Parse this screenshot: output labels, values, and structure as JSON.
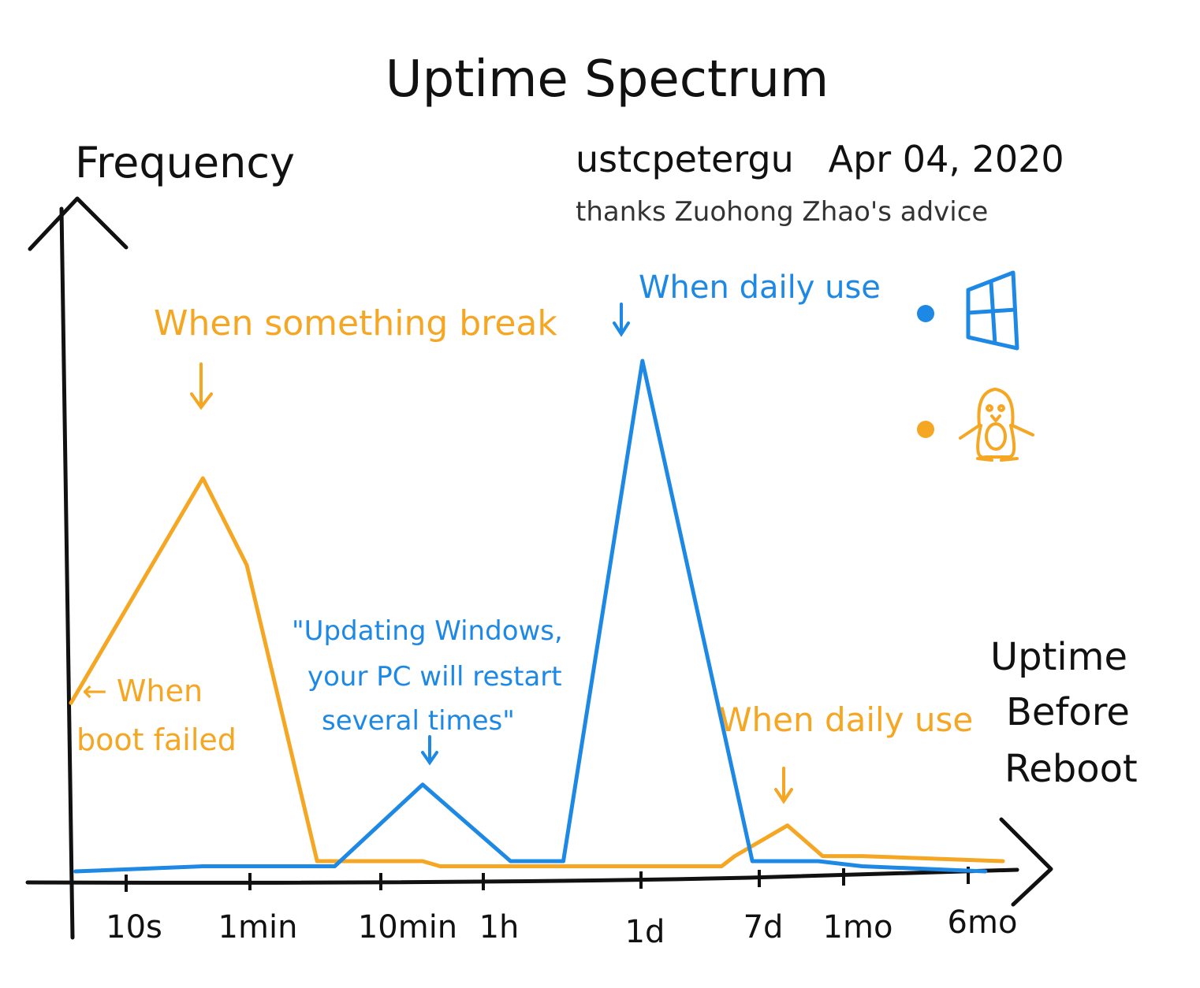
{
  "chart_data": {
    "type": "line",
    "title": "Uptime Spectrum",
    "author_line": "ustcpetergu   Apr 04, 2020",
    "credit_line": "thanks Zuohong Zhao's advice",
    "ylabel": "Frequency",
    "xlabel_lines": [
      "Uptime",
      "Before",
      "Reboot"
    ],
    "x_ticks": [
      "10s",
      "1min",
      "10min",
      "1h",
      "1d",
      "7d",
      "1mo",
      "6mo"
    ],
    "colors": {
      "windows": "#1e88e5",
      "linux": "#f5a623",
      "axis": "#111111"
    },
    "legend": [
      {
        "icon": "windows-logo-icon",
        "color": "#1e88e5"
      },
      {
        "icon": "linux-penguin-icon",
        "color": "#f5a623"
      }
    ],
    "series": [
      {
        "key": "linux",
        "color": "#f5a623",
        "points": [
          {
            "x": 0.0,
            "y": 0.33
          },
          {
            "x": 1.5,
            "y": 0.77
          },
          {
            "x": 2.0,
            "y": 0.6
          },
          {
            "x": 2.8,
            "y": 0.02
          },
          {
            "x": 4.0,
            "y": 0.02
          },
          {
            "x": 4.2,
            "y": 0.01
          },
          {
            "x": 6.0,
            "y": 0.01
          },
          {
            "x": 7.4,
            "y": 0.01
          },
          {
            "x": 7.55,
            "y": 0.03
          },
          {
            "x": 8.15,
            "y": 0.09
          },
          {
            "x": 8.55,
            "y": 0.03
          },
          {
            "x": 9.0,
            "y": 0.03
          },
          {
            "x": 10.6,
            "y": 0.02
          }
        ]
      },
      {
        "key": "windows",
        "color": "#1e88e5",
        "points": [
          {
            "x": 0.05,
            "y": 0.0
          },
          {
            "x": 1.5,
            "y": 0.01
          },
          {
            "x": 3.0,
            "y": 0.01
          },
          {
            "x": 4.0,
            "y": 0.17
          },
          {
            "x": 5.0,
            "y": 0.02
          },
          {
            "x": 5.6,
            "y": 0.02
          },
          {
            "x": 6.5,
            "y": 1.0
          },
          {
            "x": 7.75,
            "y": 0.02
          },
          {
            "x": 8.5,
            "y": 0.02
          },
          {
            "x": 9.0,
            "y": 0.01
          },
          {
            "x": 10.4,
            "y": 0.0
          }
        ]
      }
    ],
    "annotations": [
      {
        "text": [
          "When something break"
        ],
        "color": "#f5a623"
      },
      {
        "text": [
          "When daily use"
        ],
        "color": "#1e88e5"
      },
      {
        "text": [
          "\"Updating Windows,",
          "your PC will restart",
          "several times\""
        ],
        "color": "#1e88e5"
      },
      {
        "text": [
          "← When",
          "boot failed"
        ],
        "color": "#f5a623"
      },
      {
        "text": [
          "When daily use"
        ],
        "color": "#f5a623"
      }
    ]
  }
}
